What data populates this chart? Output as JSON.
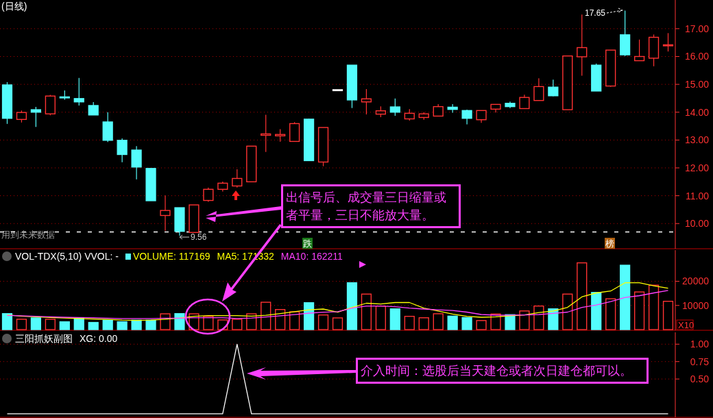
{
  "chart_data": [
    {
      "type": "candlestick",
      "title": "(日线)",
      "categories": [
        null,
        null,
        null,
        null,
        null,
        null,
        null,
        null,
        null,
        null,
        null,
        null,
        null,
        null,
        null,
        null,
        null,
        null,
        null,
        null,
        null,
        null,
        null,
        null,
        null,
        null,
        null,
        null,
        null,
        null,
        null,
        null,
        null,
        null,
        null,
        null,
        null,
        null,
        null,
        null,
        null,
        null,
        null,
        null,
        null,
        null,
        null
      ],
      "ohlc": [
        [
          14.98,
          15.08,
          13.58,
          13.78
        ],
        [
          13.74,
          14.06,
          13.63,
          13.99
        ],
        [
          14.09,
          14.19,
          13.47,
          14.0
        ],
        [
          13.94,
          14.62,
          13.89,
          14.58
        ],
        [
          14.55,
          14.78,
          14.45,
          14.52
        ],
        [
          14.49,
          15.23,
          14.24,
          14.37
        ],
        [
          14.24,
          14.36,
          13.9,
          13.9
        ],
        [
          13.65,
          14.0,
          12.93,
          12.99
        ],
        [
          12.99,
          13.06,
          12.2,
          12.48
        ],
        [
          12.64,
          12.78,
          11.59,
          12.03
        ],
        [
          11.98,
          11.98,
          10.82,
          10.82
        ],
        [
          10.29,
          11.01,
          9.74,
          10.47
        ],
        [
          10.57,
          10.57,
          9.56,
          9.72
        ],
        [
          9.68,
          10.67,
          9.68,
          10.67
        ],
        [
          10.83,
          11.29,
          10.78,
          11.23
        ],
        [
          11.23,
          11.51,
          11.15,
          11.45
        ],
        [
          11.35,
          11.95,
          11.29,
          11.62
        ],
        [
          11.5,
          12.78,
          11.5,
          12.78
        ],
        [
          13.17,
          13.91,
          12.57,
          13.22
        ],
        [
          13.15,
          13.39,
          12.94,
          13.2
        ],
        [
          12.95,
          13.64,
          12.95,
          13.59
        ],
        [
          13.75,
          13.77,
          12.26,
          12.26
        ],
        [
          12.21,
          13.45,
          12.06,
          13.45
        ],
        [
          14.81,
          14.81,
          14.81,
          14.81
        ],
        [
          15.69,
          15.69,
          14.15,
          14.44
        ],
        [
          14.37,
          14.83,
          13.92,
          14.48
        ],
        [
          13.93,
          14.21,
          13.82,
          14.05
        ],
        [
          14.19,
          14.49,
          13.87,
          14.0
        ],
        [
          13.76,
          14.11,
          13.7,
          13.96
        ],
        [
          13.81,
          14.0,
          13.73,
          13.94
        ],
        [
          13.86,
          14.29,
          13.86,
          14.2
        ],
        [
          14.18,
          14.29,
          13.98,
          14.1
        ],
        [
          14.06,
          14.09,
          13.56,
          13.78
        ],
        [
          13.73,
          14.06,
          13.62,
          14.06
        ],
        [
          14.11,
          14.28,
          13.99,
          14.28
        ],
        [
          14.32,
          14.38,
          14.15,
          14.2
        ],
        [
          14.13,
          14.63,
          14.13,
          14.53
        ],
        [
          14.42,
          15.22,
          14.42,
          14.92
        ],
        [
          14.9,
          15.17,
          14.57,
          14.59
        ],
        [
          14.09,
          16.02,
          14.09,
          16.02
        ],
        [
          15.99,
          17.51,
          15.31,
          16.32
        ],
        [
          15.69,
          15.75,
          14.76,
          14.76
        ],
        [
          14.94,
          16.23,
          14.91,
          16.23
        ],
        [
          16.78,
          17.65,
          16.02,
          16.06
        ],
        [
          15.85,
          16.61,
          15.85,
          16.0
        ],
        [
          15.94,
          16.79,
          15.65,
          16.69
        ],
        [
          16.42,
          16.84,
          16.18,
          16.42
        ]
      ],
      "colors": [
        "#54fcfc",
        "#ff3232",
        "#54fcfc",
        "#ff3232",
        "#54fcfc",
        "#54fcfc",
        "#54fcfc",
        "#54fcfc",
        "#54fcfc",
        "#54fcfc",
        "#54fcfc",
        "#ff3232",
        "#54fcfc",
        "#ff3232",
        "#ff3232",
        "#ff3232",
        "#ff3232",
        "#ff3232",
        "#ff3232",
        "#ff3232",
        "#ff3232",
        "#54fcfc",
        "#ff3232",
        "#ffffff",
        "#54fcfc",
        "#ff3232",
        "#ff3232",
        "#54fcfc",
        "#ff3232",
        "#ff3232",
        "#ff3232",
        "#54fcfc",
        "#54fcfc",
        "#ff3232",
        "#ff3232",
        "#54fcfc",
        "#ff3232",
        "#ff3232",
        "#54fcfc",
        "#ff3232",
        "#ff3232",
        "#54fcfc",
        "#ff3232",
        "#54fcfc",
        "#ff3232",
        "#ff3232",
        "#ff3232"
      ],
      "ylim": [
        9.12,
        18.03
      ],
      "yticks": [
        {
          "value": 10,
          "label": "10.00"
        },
        {
          "value": 11,
          "label": "11.00"
        },
        {
          "value": 12,
          "label": "12.00"
        },
        {
          "value": 13,
          "label": "13.00"
        },
        {
          "value": 14,
          "label": "14.00"
        },
        {
          "value": 15,
          "label": "15.00"
        },
        {
          "value": 16,
          "label": "16.00"
        },
        {
          "value": 17,
          "label": "17.00"
        }
      ],
      "grid": true,
      "ref_lines": [
        {
          "axis": "y",
          "value": 9.7,
          "color": "#ffffff",
          "line_style": "dashed"
        }
      ],
      "annotations": [
        "17.65",
        "9.56",
        "用到未来数据",
        "跌",
        "榜",
        "出信号后、成交量三日缩量或者平量，三日不能放大量。"
      ]
    },
    {
      "type": "bar",
      "title": "VOL-TDX(5,10)  VVOL: -",
      "categories": [
        null,
        null,
        null,
        null,
        null,
        null,
        null,
        null,
        null,
        null,
        null,
        null,
        null,
        null,
        null,
        null,
        null,
        null,
        null,
        null,
        null,
        null,
        null,
        null,
        null,
        null,
        null,
        null,
        null,
        null,
        null,
        null,
        null,
        null,
        null,
        null,
        null,
        null,
        null,
        null,
        null,
        null,
        null,
        null,
        null,
        null,
        null
      ],
      "series": [
        {
          "name": "VOLUME: 117169",
          "colors": [
            "#54fcfc",
            "#ff3232",
            "#54fcfc",
            "#ff3232",
            "#54fcfc",
            "#54fcfc",
            "#54fcfc",
            "#54fcfc",
            "#54fcfc",
            "#54fcfc",
            "#54fcfc",
            "#ff3232",
            "#54fcfc",
            "#ff3232",
            "#ff3232",
            "#ff3232",
            "#ff3232",
            "#ff3232",
            "#ff3232",
            "#ff3232",
            "#ff3232",
            "#54fcfc",
            "#ff3232",
            "#ff3232",
            "#54fcfc",
            "#ff3232",
            "#ff3232",
            "#54fcfc",
            "#ff3232",
            "#ff3232",
            "#ff3232",
            "#54fcfc",
            "#54fcfc",
            "#ff3232",
            "#ff3232",
            "#54fcfc",
            "#ff3232",
            "#ff3232",
            "#54fcfc",
            "#ff3232",
            "#ff3232",
            "#54fcfc",
            "#ff3232",
            "#54fcfc",
            "#ff3232",
            "#ff3232",
            "#ff3232"
          ],
          "values": [
            6620,
            4280,
            4840,
            4280,
            3240,
            4650,
            2960,
            3900,
            3240,
            3900,
            3900,
            6530,
            6620,
            6530,
            5490,
            4000,
            4280,
            6530,
            11320,
            8310,
            7370,
            11130,
            6060,
            4840,
            19400,
            14700,
            9750,
            8590,
            5490,
            4900,
            6560,
            5580,
            4990,
            3750,
            6450,
            6170,
            7720,
            9750,
            8590,
            14700,
            27630,
            15380,
            12760,
            26650,
            15580,
            18390,
            11717
          ]
        },
        {
          "name": "MA5: 171332",
          "type": "line",
          "color": "#ffff00",
          "values": [
            6060,
            5600,
            5300,
            5000,
            4800,
            4600,
            4400,
            4200,
            3900,
            3800,
            3900,
            4300,
            4800,
            5500,
            5800,
            5800,
            5800,
            5600,
            5900,
            6600,
            7400,
            8200,
            8500,
            7200,
            9180,
            10930,
            10620,
            11210,
            11210,
            8870,
            7720,
            6450,
            5490,
            5100,
            5300,
            5690,
            6060,
            7040,
            7720,
            9180,
            13550,
            15180,
            15970,
            19380,
            19380,
            18110,
            17133
          ]
        },
        {
          "name": "MA10: 162211",
          "type": "line",
          "color": "#ff40ff",
          "values": [
            5860,
            5700,
            5500,
            5300,
            5100,
            5000,
            4900,
            4700,
            4600,
            4600,
            4600,
            4700,
            4700,
            4900,
            4900,
            4900,
            4600,
            4800,
            5200,
            5700,
            6200,
            6800,
            7200,
            7400,
            8870,
            9750,
            9750,
            9460,
            8870,
            8500,
            8200,
            7920,
            7240,
            6250,
            5970,
            6000,
            6060,
            6250,
            6730,
            7240,
            9180,
            10140,
            11610,
            13270,
            14030,
            15180,
            16221
          ]
        }
      ],
      "ylim": [
        0,
        32900
      ],
      "yticks": [
        10000,
        20000
      ],
      "grid": true,
      "legend": "top left",
      "annotations": [
        "X10"
      ]
    },
    {
      "type": "line",
      "title": "三阳抓妖副图",
      "categories": [
        null,
        null,
        null,
        null,
        null,
        null,
        null,
        null,
        null,
        null,
        null,
        null,
        null,
        null,
        null,
        null,
        null,
        null,
        null,
        null,
        null,
        null,
        null,
        null,
        null,
        null,
        null,
        null,
        null,
        null,
        null,
        null,
        null,
        null,
        null,
        null,
        null,
        null,
        null,
        null,
        null,
        null,
        null,
        null,
        null,
        null,
        null
      ],
      "series": [
        {
          "name": "XG: 0.00",
          "color": "#ffffff",
          "values": [
            0,
            0,
            0,
            0,
            0,
            0,
            0,
            0,
            0,
            0,
            0,
            0,
            0,
            0,
            0,
            0,
            1,
            0,
            0,
            0,
            0,
            0,
            0,
            0,
            0,
            0,
            0,
            0,
            0,
            0,
            0,
            0,
            0,
            0,
            0,
            0,
            0,
            0,
            0,
            0,
            0,
            0,
            0,
            0,
            0,
            0,
            0
          ]
        }
      ],
      "ylim": [
        -0.04,
        1.17
      ],
      "yticks": [
        {
          "value": 0.5,
          "label": "0.50"
        },
        {
          "value": 0.75,
          "label": "0.75"
        },
        {
          "value": 1,
          "label": "1.00"
        }
      ],
      "grid": true,
      "legend": "top left",
      "annotations": [
        "介入时间：选股后当天建仓或者次日建仓都可以。"
      ]
    }
  ]
}
